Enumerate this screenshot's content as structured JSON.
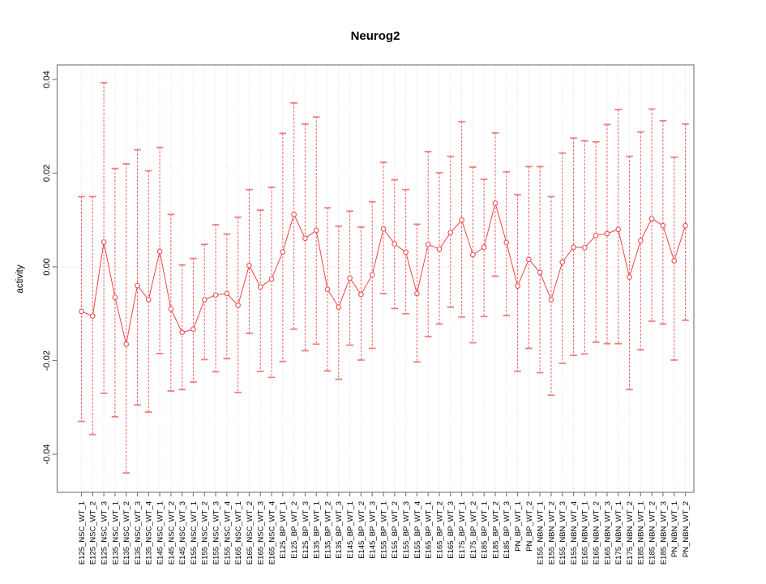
{
  "chart_data": {
    "type": "line",
    "subtype": "points-with-error-bars",
    "title": "Neurog2",
    "xlabel": "",
    "ylabel": "activity",
    "ylim": [
      -0.05,
      0.043
    ],
    "yticks": [
      {
        "v": 0.04,
        "label": "0.04"
      },
      {
        "v": 0.02,
        "label": "0.02"
      },
      {
        "v": 0.0,
        "label": "0.00"
      },
      {
        "v": -0.02,
        "label": "-0.02"
      },
      {
        "v": -0.04,
        "label": "-0.04"
      }
    ],
    "grid": {
      "vertical_dotted_per_category": true,
      "horizontal_dotted_at_zero": true
    },
    "legend": "none",
    "marker": "open-circle",
    "colors": {
      "series": "#ee4444",
      "cap": "#f27070",
      "grid": "#d8d8d8",
      "zero_line": "#d4d4d4",
      "frame": "#808080",
      "text": "#000000",
      "background": "#ffffff"
    },
    "categories": [
      "E125_NSC_WT_1",
      "E125_NSC_WT_2",
      "E125_NSC_WT_3",
      "E135_NSC_WT_1",
      "E135_NSC_WT_2",
      "E135_NSC_WT_3",
      "E135_NSC_WT_4",
      "E145_NSC_WT_1",
      "E145_NSC_WT_2",
      "E145_NSC_WT_3",
      "E155_NSC_WT_1",
      "E155_NSC_WT_2",
      "E155_NSC_WT_3",
      "E155_NSC_WT_4",
      "E165_NSC_WT_1",
      "E165_NSC_WT_2",
      "E165_NSC_WT_3",
      "E165_NSC_WT_4",
      "E125_BP_WT_1",
      "E125_BP_WT_2",
      "E125_BP_WT_3",
      "E135_BP_WT_1",
      "E135_BP_WT_2",
      "E135_BP_WT_3",
      "E145_BP_WT_1",
      "E145_BP_WT_2",
      "E145_BP_WT_3",
      "E155_BP_WT_1",
      "E155_BP_WT_2",
      "E155_BP_WT_3",
      "E155_BP_WT_4",
      "E165_BP_WT_1",
      "E165_BP_WT_2",
      "E165_BP_WT_3",
      "E175_BP_WT_1",
      "E175_BP_WT_2",
      "E185_BP_WT_1",
      "E185_BP_WT_2",
      "E185_BP_WT_3",
      "PN_BP_WT_1",
      "PN_BP_WT_2",
      "E155_NBN_WT_1",
      "E155_NBN_WT_2",
      "E155_NBN_WT_3",
      "E155_NBN_WT_4",
      "E165_NBN_WT_1",
      "E165_NBN_WT_2",
      "E165_NBN_WT_3",
      "E175_NBN_WT_1",
      "E175_NBN_WT_2",
      "E185_NBN_WT_1",
      "E185_NBN_WT_2",
      "E185_NBN_WT_3",
      "PN_NBN_WT_1",
      "PN_NBN_WT_2"
    ],
    "series": [
      {
        "name": "activity",
        "values": [
          -0.0095,
          -0.0105,
          0.0053,
          -0.0065,
          -0.0165,
          -0.004,
          -0.007,
          0.0033,
          -0.009,
          -0.014,
          -0.0133,
          -0.007,
          -0.006,
          -0.0057,
          -0.0082,
          0.0003,
          -0.0043,
          -0.0026,
          0.0032,
          0.0112,
          0.0061,
          0.0078,
          -0.0048,
          -0.0086,
          -0.0024,
          -0.0059,
          -0.0017,
          0.0081,
          0.0049,
          0.0031,
          -0.0057,
          0.0048,
          0.0038,
          0.0073,
          0.01,
          0.0026,
          0.0042,
          0.0136,
          0.0052,
          -0.0041,
          0.0016,
          -0.0012,
          -0.007,
          0.001,
          0.0042,
          0.0041,
          0.0067,
          0.0071,
          0.008,
          -0.0022,
          0.0056,
          0.0103,
          0.0088,
          0.0013,
          0.0088
        ],
        "err_lo": [
          -0.033,
          -0.0358,
          -0.027,
          -0.032,
          -0.044,
          -0.0295,
          -0.031,
          -0.0185,
          -0.0265,
          -0.0262,
          -0.0246,
          -0.0198,
          -0.0224,
          -0.0196,
          -0.0268,
          -0.0142,
          -0.0223,
          -0.0236,
          -0.0202,
          -0.0133,
          -0.0179,
          -0.0165,
          -0.0222,
          -0.024,
          -0.0167,
          -0.0199,
          -0.0174,
          -0.0057,
          -0.0089,
          -0.01,
          -0.0203,
          -0.0149,
          -0.0122,
          -0.0086,
          -0.0107,
          -0.0162,
          -0.0106,
          -0.002,
          -0.0104,
          -0.0223,
          -0.0174,
          -0.0226,
          -0.0274,
          -0.0206,
          -0.0189,
          -0.0186,
          -0.0161,
          -0.0164,
          -0.0164,
          -0.0262,
          -0.0177,
          -0.0116,
          -0.0122,
          -0.0199,
          -0.0114
        ],
        "err_hi": [
          0.015,
          0.015,
          0.0393,
          0.021,
          0.022,
          0.025,
          0.0205,
          0.0255,
          0.0112,
          0.0004,
          0.0018,
          0.0048,
          0.009,
          0.007,
          0.0106,
          0.0165,
          0.0121,
          0.017,
          0.0285,
          0.035,
          0.0305,
          0.032,
          0.0126,
          0.0087,
          0.0119,
          0.0085,
          0.0139,
          0.0223,
          0.0186,
          0.0165,
          0.0091,
          0.0246,
          0.0201,
          0.0236,
          0.031,
          0.0213,
          0.0187,
          0.0286,
          0.0203,
          0.0154,
          0.0214,
          0.0214,
          0.015,
          0.0243,
          0.0275,
          0.0269,
          0.0267,
          0.0304,
          0.0336,
          0.0236,
          0.0288,
          0.0337,
          0.0312,
          0.0234,
          0.0305
        ]
      }
    ]
  }
}
